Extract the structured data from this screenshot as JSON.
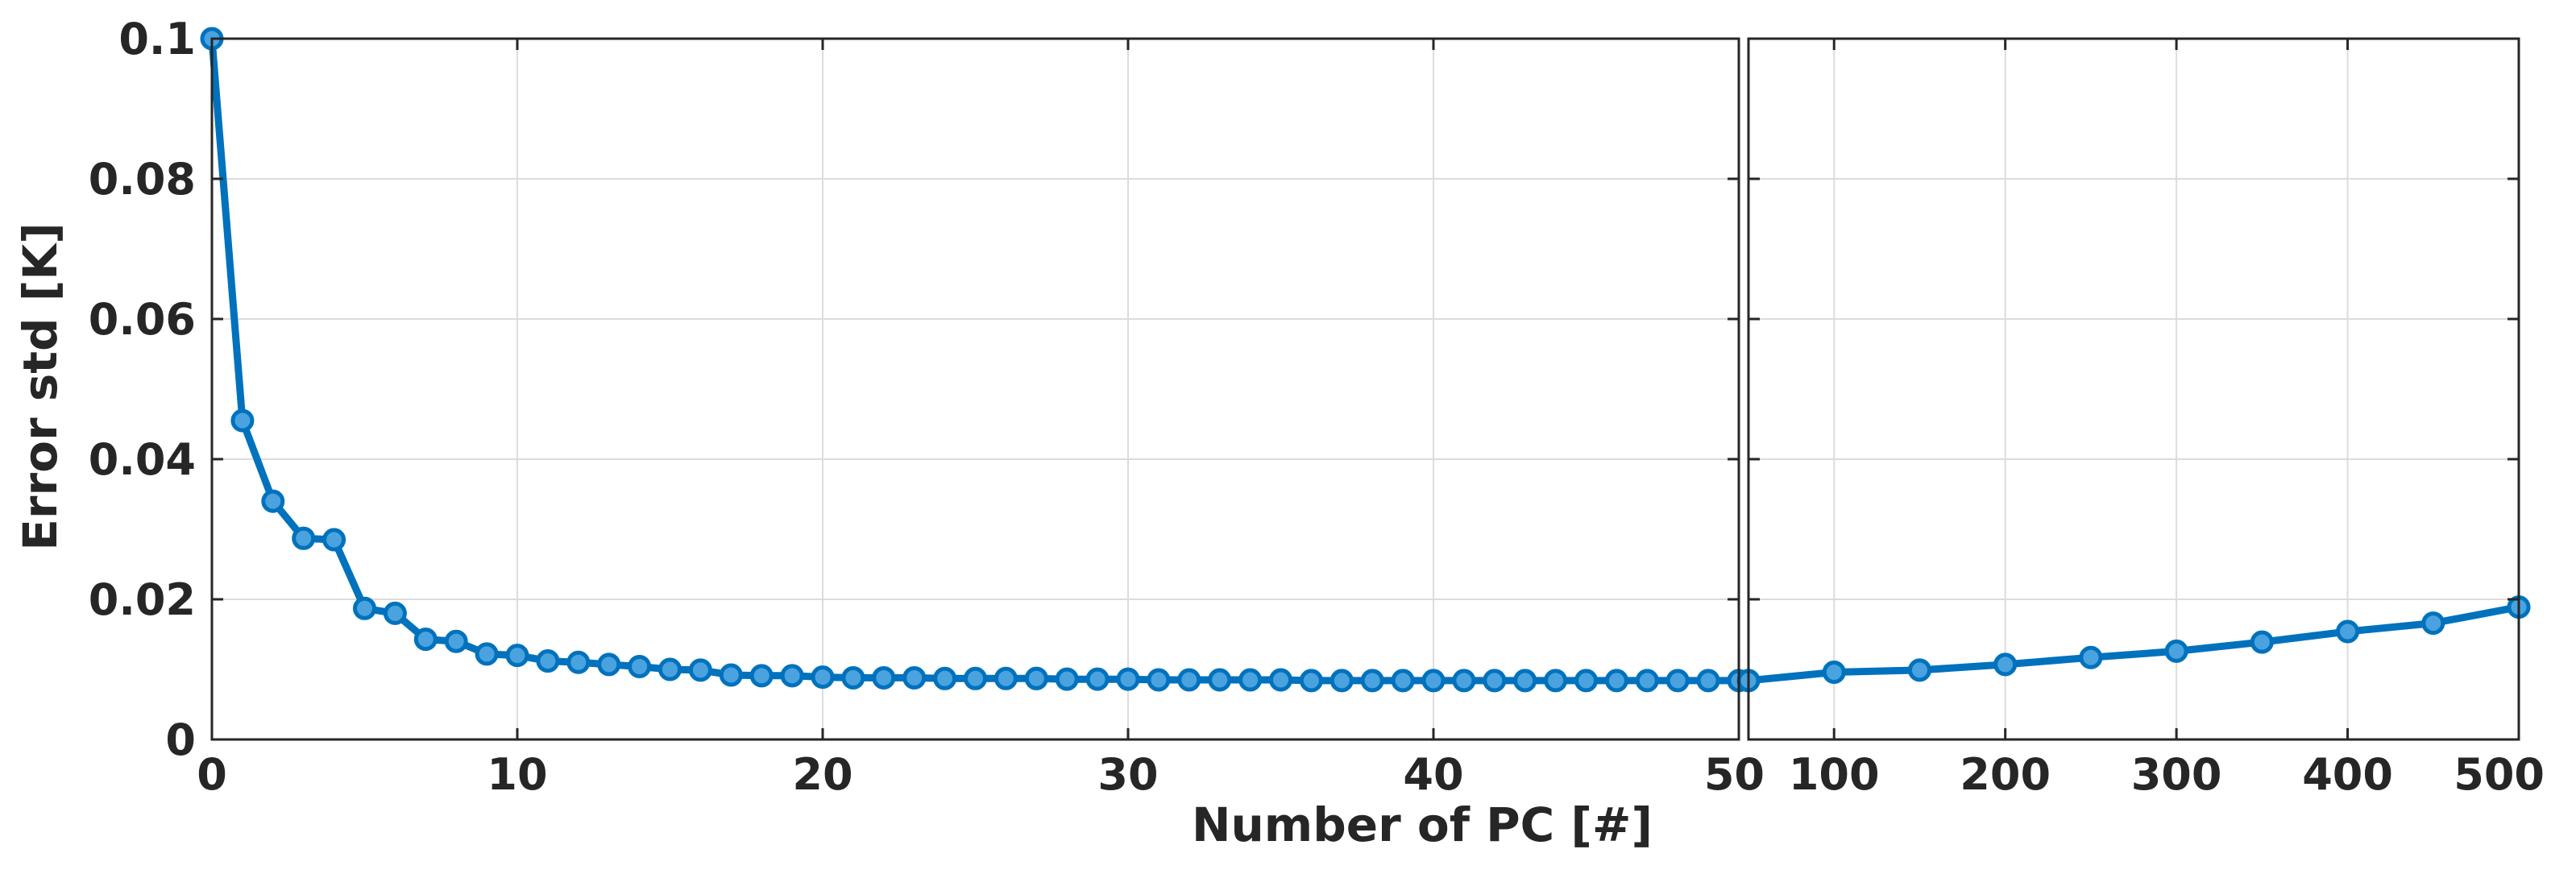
{
  "chart_data": {
    "type": "line",
    "ylabel": "Error std [K]",
    "xlabel": "Number of PC [#]",
    "color": "#0072BD",
    "marker_fill": "#4aa3df",
    "y": {
      "lim": [
        0,
        0.1
      ],
      "ticks": [
        0,
        0.02,
        0.04,
        0.06,
        0.08,
        0.1
      ],
      "tick_labels": [
        "0",
        "0.02",
        "0.04",
        "0.06",
        "0.08",
        "0.1"
      ]
    },
    "panels": [
      {
        "name": "left",
        "xlim": [
          0,
          50
        ],
        "xticks": [
          0,
          10,
          20,
          30,
          40,
          50
        ],
        "xtick_labels": [
          "0",
          "10",
          "20",
          "30",
          "40",
          "50"
        ],
        "x": [
          0,
          1,
          2,
          3,
          4,
          5,
          6,
          7,
          8,
          9,
          10,
          11,
          12,
          13,
          14,
          15,
          16,
          17,
          18,
          19,
          20,
          21,
          22,
          23,
          24,
          25,
          26,
          27,
          27,
          28,
          29,
          30,
          31,
          32,
          33,
          34,
          35,
          36,
          37,
          38,
          39,
          40,
          41,
          42,
          43,
          44,
          45,
          46,
          47,
          48,
          49,
          50
        ],
        "y": [
          0.1,
          0.0455,
          0.034,
          0.0287,
          0.0285,
          0.0187,
          0.018,
          0.0143,
          0.014,
          0.0122,
          0.012,
          0.0112,
          0.011,
          0.0107,
          0.0104,
          0.01,
          0.0099,
          0.0092,
          0.0091,
          0.0091,
          0.0089,
          0.0088,
          0.0088,
          0.0088,
          0.0087,
          0.0087,
          0.0087,
          0.0087,
          0.0087,
          0.0086,
          0.0086,
          0.0086,
          0.0085,
          0.0085,
          0.0085,
          0.0085,
          0.0085,
          0.0084,
          0.0084,
          0.0084,
          0.0084,
          0.0084,
          0.0084,
          0.0084,
          0.0084,
          0.0084,
          0.0084,
          0.0084,
          0.0084,
          0.0084,
          0.0084,
          0.0084
        ]
      },
      {
        "name": "right",
        "xlim": [
          50,
          500
        ],
        "xticks": [
          100,
          200,
          300,
          400,
          500
        ],
        "xtick_labels": [
          "100",
          "200",
          "300",
          "400",
          "500"
        ],
        "x": [
          50,
          100,
          150,
          200,
          250,
          300,
          350,
          400,
          450,
          500
        ],
        "y": [
          0.0084,
          0.0096,
          0.0099,
          0.0107,
          0.0117,
          0.0126,
          0.0139,
          0.0154,
          0.0166,
          0.0189
        ]
      }
    ]
  }
}
